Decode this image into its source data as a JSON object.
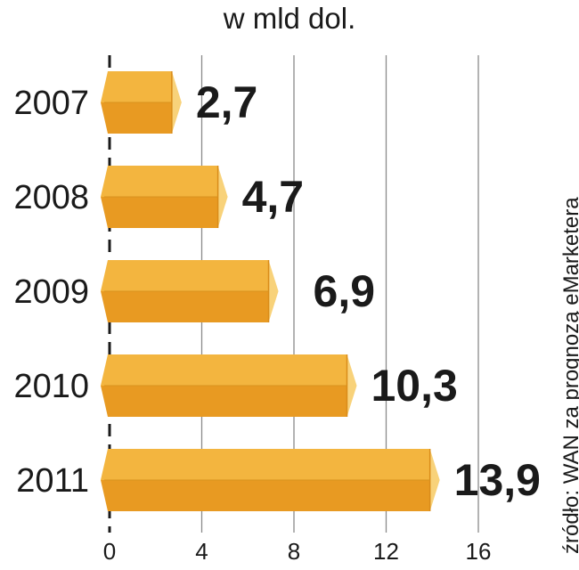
{
  "chart_data": {
    "type": "bar",
    "orientation": "horizontal",
    "subtitle": "w mld dol.",
    "categories": [
      "2007",
      "2008",
      "2009",
      "2010",
      "2011"
    ],
    "values": [
      2.7,
      4.7,
      6.9,
      10.3,
      13.9
    ],
    "value_labels": [
      "2,7",
      "4,7",
      "6,9",
      "10,3",
      "13,9"
    ],
    "x_ticks": [
      0,
      4,
      8,
      12,
      16
    ],
    "xlim": [
      0,
      16
    ],
    "grid": true,
    "source": "źródło: WAN za prognozą eMarketera",
    "colors": {
      "bar_top": "#f3b53f",
      "bar_bottom": "#e89a22",
      "bar_end": "#f8d27a",
      "grid": "#8a8a8a",
      "axis": "#1a1a1a"
    }
  }
}
